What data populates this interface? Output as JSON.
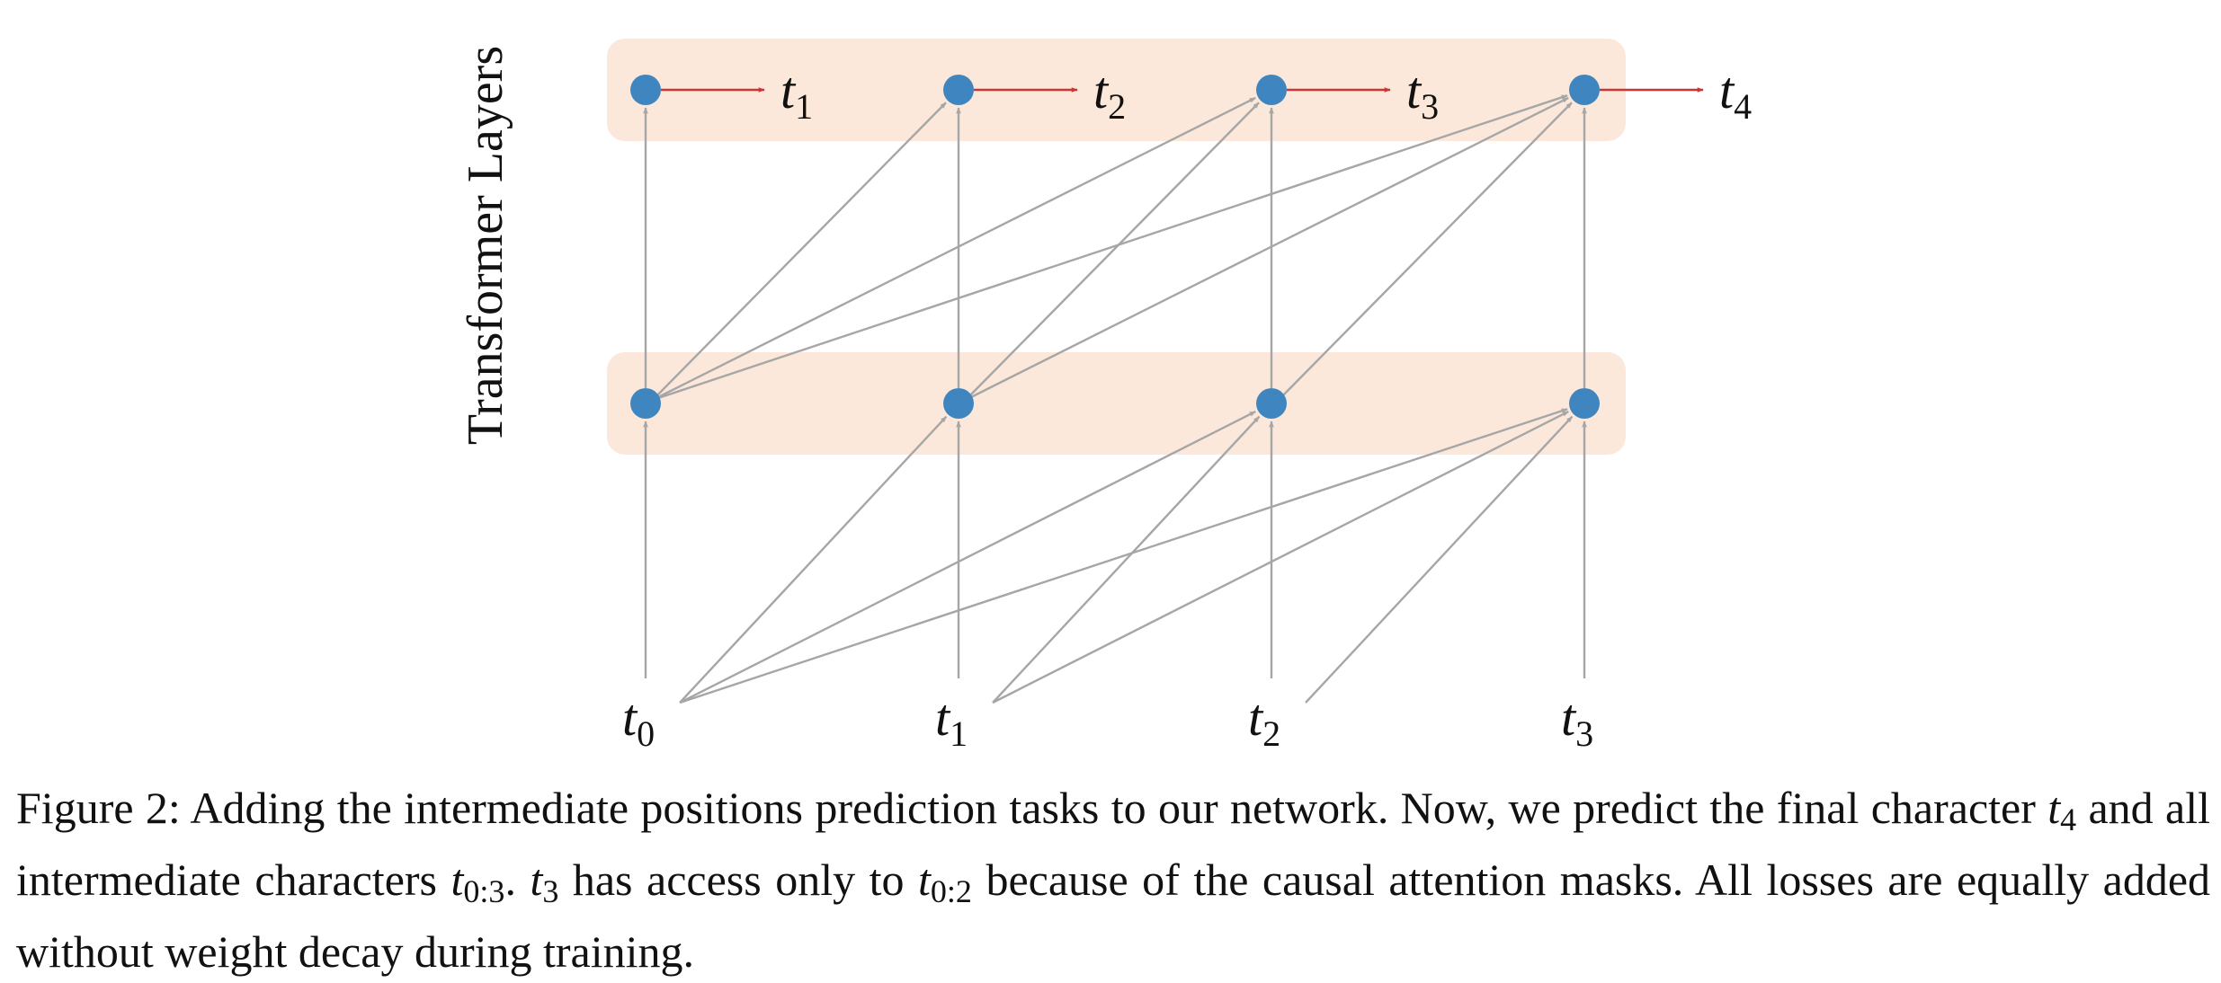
{
  "diagram": {
    "axis_label": "Transformer Layers",
    "input_tokens": [
      {
        "base": "t",
        "sub": "0"
      },
      {
        "base": "t",
        "sub": "1"
      },
      {
        "base": "t",
        "sub": "2"
      },
      {
        "base": "t",
        "sub": "3"
      }
    ],
    "output_tokens": [
      {
        "base": "t",
        "sub": "1"
      },
      {
        "base": "t",
        "sub": "2"
      },
      {
        "base": "t",
        "sub": "3"
      },
      {
        "base": "t",
        "sub": "4"
      }
    ],
    "layer_count": 2,
    "positions": 4,
    "connection_rule": "causal: position i attends to positions 0..i",
    "colors": {
      "node": "#3f86c0",
      "layer_band": "#fbe8da",
      "attention_edge": "#a6a6a6",
      "output_arrow": "#cc3333"
    }
  },
  "caption": {
    "prefix": "Figure 2: Adding the intermediate positions prediction tasks to our network. Now, we predict the final character ",
    "v1_base": "t",
    "v1_sub": "4",
    "mid1": " and all intermediate characters ",
    "v2_base": "t",
    "v2_sub": "0:3",
    "mid2": ". ",
    "v3_base": "t",
    "v3_sub": "3",
    "mid3": " has access only to ",
    "v4_base": "t",
    "v4_sub": "0:2",
    "suffix": " because of the causal attention masks. All losses are equally added without weight decay during training."
  }
}
